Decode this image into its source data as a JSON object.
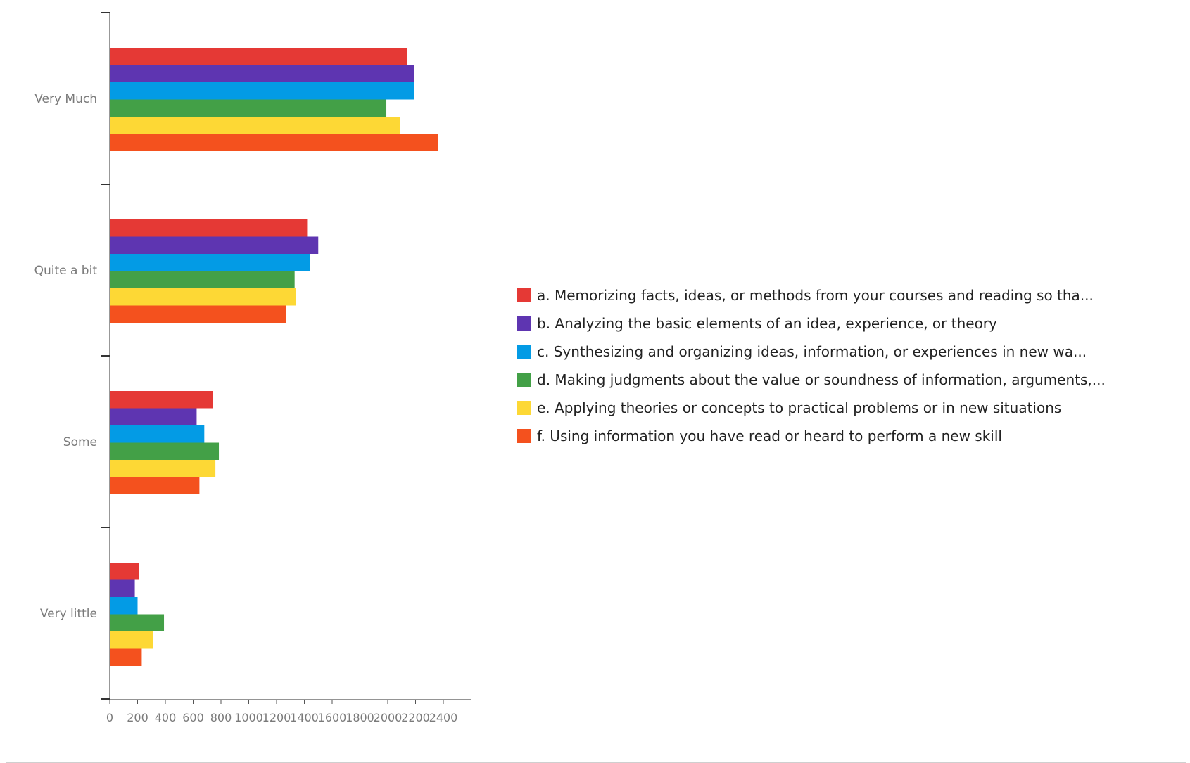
{
  "chart_data": {
    "type": "bar",
    "orientation": "horizontal",
    "categories": [
      "Very Much",
      "Quite a bit",
      "Some",
      "Very little"
    ],
    "x_ticks": [
      "0",
      "200",
      "400",
      "600",
      "800",
      "1000",
      "1200",
      "1400",
      "1600",
      "1800",
      "2000",
      "2200",
      "2400"
    ],
    "xlim": [
      0,
      2600
    ],
    "legend_position": "right",
    "grid": false,
    "series": [
      {
        "name": "a. Memorizing facts, ideas, or methods from your courses and reading so tha...",
        "color": "#e53935",
        "values": [
          2140,
          1420,
          740,
          210
        ]
      },
      {
        "name": "b. Analyzing the basic elements of an idea, experience, or theory",
        "color": "#5e35b1",
        "values": [
          2190,
          1500,
          625,
          180
        ]
      },
      {
        "name": "c. Synthesizing and organizing ideas, information, or experiences in new wa...",
        "color": "#039be5",
        "values": [
          2190,
          1440,
          680,
          200
        ]
      },
      {
        "name": "d. Making judgments about the value or soundness of information, arguments,...",
        "color": "#43a047",
        "values": [
          1990,
          1330,
          785,
          390
        ]
      },
      {
        "name": "e. Applying theories or concepts to practical problems or in new situations",
        "color": "#fdd835",
        "values": [
          2090,
          1340,
          760,
          310
        ]
      },
      {
        "name": "f. Using information you have read or heard to perform a new skill",
        "color": "#f4511e",
        "values": [
          2360,
          1270,
          645,
          230
        ]
      }
    ]
  }
}
